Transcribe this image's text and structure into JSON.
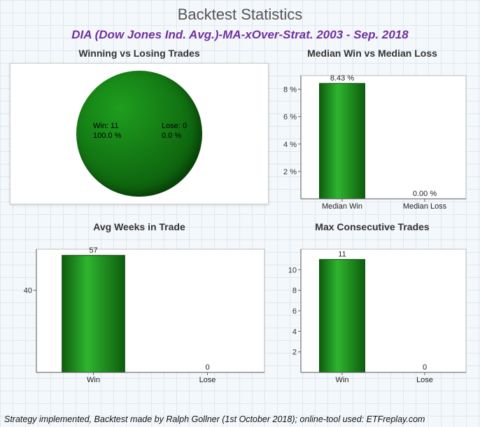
{
  "title": "Backtest Statistics",
  "subtitle": "DIA (Dow Jones Ind. Avg.)-MA-xOver-Strat. 2003 - Sep. 2018",
  "footer": "Strategy implemented, Backtest made by Ralph Gollner (1st October 2018); online-tool used: ETFreplay.com",
  "pie": {
    "title": "Winning vs Losing Trades",
    "win_line1": "Win: 11",
    "win_line2": "100.0 %",
    "lose_line1": "Lose: 0",
    "lose_line2": "0.0 %",
    "fill": "radial-gradient(circle at 35% 30%,#1e9e1e,#0b5a0b 80%)"
  },
  "bar_median": {
    "title": "Median Win vs Median Loss",
    "categories": [
      "Median Win",
      "Median Loss"
    ],
    "values": [
      8.43,
      0.0
    ],
    "value_labels": [
      "8.43 %",
      "0.00 %"
    ],
    "y_ticks": [
      2,
      4,
      6,
      8
    ],
    "y_tick_labels": [
      "2 %",
      "4 %",
      "6 %",
      "8 %"
    ],
    "y_max": 9,
    "bar_color": "#1a8a1a",
    "bar_edge": "#0a4a0a",
    "axis_color": "#666",
    "grid_color": "#e0e0e0",
    "bg": "#ffffff",
    "label_fontsize": 11
  },
  "bar_weeks": {
    "title": "Avg Weeks in Trade",
    "categories": [
      "Win",
      "Lose"
    ],
    "values": [
      57,
      0
    ],
    "value_labels": [
      "57",
      "0"
    ],
    "y_ticks": [
      40
    ],
    "y_tick_labels": [
      "40"
    ],
    "y_max": 60,
    "bar_color": "#1a8a1a",
    "bar_edge": "#0a4a0a",
    "axis_color": "#666",
    "grid_color": "#e0e0e0",
    "bg": "#ffffff",
    "label_fontsize": 11
  },
  "bar_consec": {
    "title": "Max Consecutive Trades",
    "categories": [
      "Win",
      "Lose"
    ],
    "values": [
      11,
      0
    ],
    "value_labels": [
      "11",
      "0"
    ],
    "y_ticks": [
      2,
      4,
      6,
      8,
      10
    ],
    "y_tick_labels": [
      "2",
      "4",
      "6",
      "8",
      "10"
    ],
    "y_max": 12,
    "bar_color": "#1a8a1a",
    "bar_edge": "#0a4a0a",
    "axis_color": "#666",
    "grid_color": "#e0e0e0",
    "bg": "#ffffff",
    "label_fontsize": 11
  }
}
